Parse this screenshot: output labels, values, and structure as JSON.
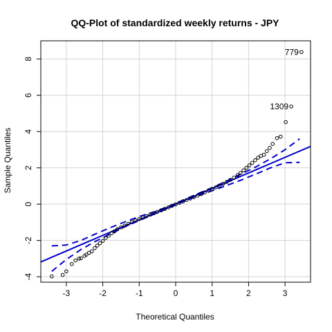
{
  "chart_data": {
    "type": "scatter",
    "title": "QQ-Plot of standardized weekly returns - JPY",
    "xlabel": "Theoretical Quantiles",
    "ylabel": "Sample Quantiles",
    "xlim": [
      -3.7,
      3.7
    ],
    "ylim": [
      -4.3,
      9.0
    ],
    "xticks": [
      -3,
      -2,
      -1,
      0,
      1,
      2,
      3
    ],
    "yticks": [
      -4,
      -2,
      0,
      2,
      4,
      6,
      8
    ],
    "grid": true,
    "colors": {
      "points": "#000000",
      "line": "#0000CD",
      "envelope": "#0000CD",
      "grid": "#D3D3D3"
    },
    "reference_line": {
      "intercept": 0.0,
      "slope": 0.86
    },
    "confidence_envelope": {
      "x": [
        -3.4,
        -3.0,
        -2.6,
        -2.2,
        -1.8,
        -1.4,
        -1.0,
        -0.6,
        -0.2,
        0.2,
        0.6,
        1.0,
        1.4,
        1.8,
        2.2,
        2.6,
        3.0,
        3.4
      ],
      "upper": [
        -2.3,
        -2.25,
        -2.0,
        -1.64,
        -1.3,
        -0.98,
        -0.68,
        -0.43,
        -0.13,
        0.22,
        0.57,
        0.91,
        1.27,
        1.67,
        2.05,
        2.5,
        3.0,
        3.6
      ],
      "lower": [
        -3.7,
        -3.05,
        -2.5,
        -2.05,
        -1.65,
        -1.25,
        -0.9,
        -0.56,
        -0.21,
        0.14,
        0.46,
        0.74,
        1.03,
        1.33,
        1.66,
        2.0,
        2.28,
        2.3
      ]
    },
    "points": [
      {
        "x": -3.4,
        "y": -3.98
      },
      {
        "x": -3.1,
        "y": -3.9
      },
      {
        "x": -3.0,
        "y": -3.7
      },
      {
        "x": -2.85,
        "y": -3.3
      },
      {
        "x": -2.75,
        "y": -3.1
      },
      {
        "x": -2.65,
        "y": -3.0
      },
      {
        "x": -2.6,
        "y": -2.98
      },
      {
        "x": -2.5,
        "y": -2.85
      },
      {
        "x": -2.45,
        "y": -2.78
      },
      {
        "x": -2.38,
        "y": -2.68
      },
      {
        "x": -2.3,
        "y": -2.6
      },
      {
        "x": -2.22,
        "y": -2.42
      },
      {
        "x": -2.15,
        "y": -2.28
      },
      {
        "x": -2.08,
        "y": -2.15
      },
      {
        "x": -2.0,
        "y": -2.02
      },
      {
        "x": -1.92,
        "y": -1.86
      },
      {
        "x": -1.84,
        "y": -1.74
      },
      {
        "x": -1.76,
        "y": -1.6
      },
      {
        "x": -1.68,
        "y": -1.5
      },
      {
        "x": -1.6,
        "y": -1.38
      },
      {
        "x": -1.5,
        "y": -1.28
      },
      {
        "x": -1.4,
        "y": -1.18
      },
      {
        "x": -1.3,
        "y": -1.08
      },
      {
        "x": -1.2,
        "y": -0.98
      },
      {
        "x": -1.1,
        "y": -0.9
      },
      {
        "x": -1.0,
        "y": -0.82
      },
      {
        "x": -0.9,
        "y": -0.74
      },
      {
        "x": -0.8,
        "y": -0.66
      },
      {
        "x": -0.7,
        "y": -0.58
      },
      {
        "x": -0.6,
        "y": -0.5
      },
      {
        "x": -0.5,
        "y": -0.42
      },
      {
        "x": -0.4,
        "y": -0.34
      },
      {
        "x": -0.3,
        "y": -0.26
      },
      {
        "x": -0.2,
        "y": -0.18
      },
      {
        "x": -0.1,
        "y": -0.09
      },
      {
        "x": 0.0,
        "y": -0.01
      },
      {
        "x": 0.1,
        "y": 0.07
      },
      {
        "x": 0.2,
        "y": 0.15
      },
      {
        "x": 0.3,
        "y": 0.23
      },
      {
        "x": 0.4,
        "y": 0.31
      },
      {
        "x": 0.5,
        "y": 0.39
      },
      {
        "x": 0.6,
        "y": 0.47
      },
      {
        "x": 0.7,
        "y": 0.56
      },
      {
        "x": 0.8,
        "y": 0.65
      },
      {
        "x": 0.9,
        "y": 0.74
      },
      {
        "x": 1.0,
        "y": 0.83
      },
      {
        "x": 1.1,
        "y": 0.92
      },
      {
        "x": 1.2,
        "y": 1.02
      },
      {
        "x": 1.3,
        "y": 1.12
      },
      {
        "x": 1.4,
        "y": 1.22
      },
      {
        "x": 1.5,
        "y": 1.34
      },
      {
        "x": 1.6,
        "y": 1.46
      },
      {
        "x": 1.7,
        "y": 1.6
      },
      {
        "x": 1.78,
        "y": 1.72
      },
      {
        "x": 1.86,
        "y": 1.86
      },
      {
        "x": 1.94,
        "y": 2.0
      },
      {
        "x": 2.02,
        "y": 2.14
      },
      {
        "x": 2.1,
        "y": 2.28
      },
      {
        "x": 2.18,
        "y": 2.42
      },
      {
        "x": 2.26,
        "y": 2.56
      },
      {
        "x": 2.34,
        "y": 2.66
      },
      {
        "x": 2.42,
        "y": 2.72
      },
      {
        "x": 2.5,
        "y": 2.92
      },
      {
        "x": 2.58,
        "y": 3.1
      },
      {
        "x": 2.66,
        "y": 3.32
      },
      {
        "x": 2.78,
        "y": 3.64
      },
      {
        "x": 2.88,
        "y": 3.72
      },
      {
        "x": 3.02,
        "y": 4.52
      },
      {
        "x": 3.17,
        "y": 5.38,
        "label": "1309"
      },
      {
        "x": 3.45,
        "y": 8.38,
        "label": "779"
      }
    ]
  }
}
